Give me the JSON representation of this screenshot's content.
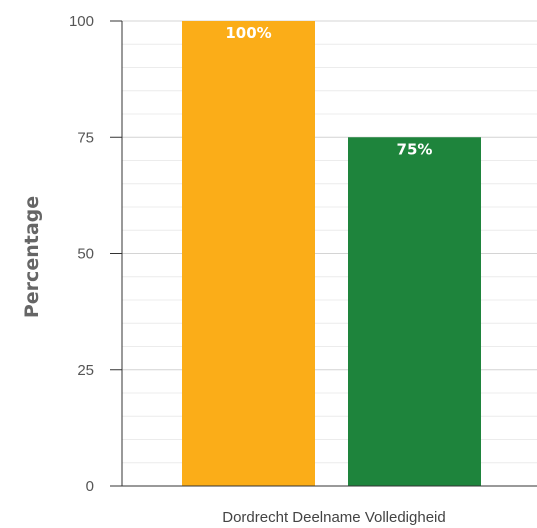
{
  "chart_data": {
    "type": "bar",
    "categories": [
      "Dordrecht Deelname Volledigheid"
    ],
    "series": [
      {
        "values": [
          100
        ],
        "color": "#fbad18",
        "data_label": "100%"
      },
      {
        "values": [
          75
        ],
        "color": "#1e843c",
        "data_label": "75%"
      }
    ],
    "title": "",
    "xlabel": "",
    "ylabel": "Percentage",
    "ylim": [
      0,
      100
    ],
    "yticks": [
      0,
      25,
      50,
      75,
      100
    ],
    "grid": true,
    "legend": "none"
  },
  "colors": {
    "grid_major": "#d4d4d4",
    "grid_minor": "#ececec",
    "axis": "#333333"
  }
}
